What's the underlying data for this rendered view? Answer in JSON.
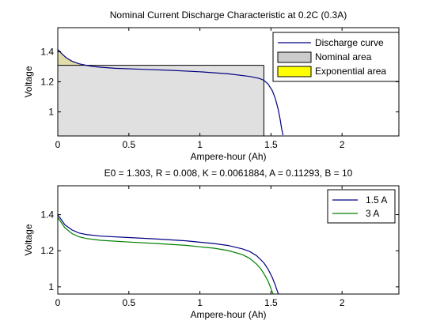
{
  "chart_data": [
    {
      "type": "area",
      "title": "Nominal Current Discharge Characteristic at 0.2C (0.3A)",
      "xlabel": "Ampere-hour (Ah)",
      "ylabel": "Voltage",
      "xlim": [
        0,
        2.4
      ],
      "ylim": [
        0.84,
        1.56
      ],
      "xticks": [
        0,
        0.5,
        1,
        1.5,
        2
      ],
      "yticks": [
        1,
        1.2,
        1.4
      ],
      "grid": false,
      "legend_position": "top-right",
      "legend": [
        "Discharge curve",
        "Nominal area",
        "Exponential area"
      ],
      "series": [
        {
          "name": "Discharge curve",
          "color": "#000080",
          "x": [
            0,
            0.03,
            0.06,
            0.1,
            0.15,
            0.2,
            0.25,
            0.3,
            0.4,
            0.6,
            0.8,
            1.0,
            1.2,
            1.35,
            1.42,
            1.45,
            1.48,
            1.51,
            1.53,
            1.55,
            1.565,
            1.575,
            1.585
          ],
          "y": [
            1.415,
            1.385,
            1.36,
            1.337,
            1.32,
            1.31,
            1.302,
            1.297,
            1.29,
            1.283,
            1.276,
            1.267,
            1.253,
            1.236,
            1.222,
            1.21,
            1.185,
            1.14,
            1.09,
            1.02,
            0.95,
            0.89,
            0.845
          ]
        }
      ],
      "nominal_area": {
        "name": "Nominal area",
        "color": "#e0e0e0",
        "x_end": 1.45,
        "voltage": 1.31
      },
      "exponential_area": {
        "name": "Exponential area",
        "color": "#ffff00"
      }
    },
    {
      "type": "line",
      "title": "E0 = 1.303, R = 0.008, K = 0.0061884, A = 0.11293, B = 10",
      "xlabel": "Ampere-hour (Ah)",
      "ylabel": "Voltage",
      "xlim": [
        0,
        2.4
      ],
      "ylim": [
        0.96,
        1.56
      ],
      "xticks": [
        0,
        0.5,
        1,
        1.5,
        2
      ],
      "yticks": [
        1,
        1.2,
        1.4
      ],
      "grid": false,
      "legend_position": "top-right",
      "series": [
        {
          "name": "1.5 A",
          "color": "#000080",
          "x": [
            0,
            0.05,
            0.1,
            0.15,
            0.2,
            0.3,
            0.5,
            0.7,
            0.9,
            1.1,
            1.2,
            1.3,
            1.35,
            1.4,
            1.45,
            1.48,
            1.51,
            1.53,
            1.545,
            1.555
          ],
          "y": [
            1.4,
            1.343,
            1.315,
            1.298,
            1.29,
            1.281,
            1.273,
            1.265,
            1.255,
            1.24,
            1.229,
            1.21,
            1.196,
            1.172,
            1.133,
            1.097,
            1.05,
            1.01,
            0.975,
            0.955
          ]
        },
        {
          "name": "3 A",
          "color": "#008000",
          "x": [
            0,
            0.05,
            0.1,
            0.15,
            0.2,
            0.3,
            0.5,
            0.7,
            0.9,
            1.1,
            1.2,
            1.3,
            1.35,
            1.4,
            1.43,
            1.46,
            1.48,
            1.5,
            1.51,
            1.52
          ],
          "y": [
            1.385,
            1.327,
            1.295,
            1.277,
            1.268,
            1.258,
            1.248,
            1.24,
            1.23,
            1.214,
            1.201,
            1.178,
            1.158,
            1.125,
            1.098,
            1.06,
            1.03,
            0.99,
            0.97,
            0.952
          ]
        }
      ]
    }
  ]
}
